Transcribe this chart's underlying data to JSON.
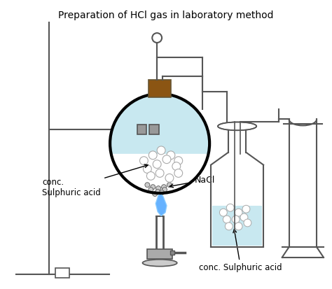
{
  "title": "Preparation of HCl gas in laboratory method",
  "title_fontsize": 10,
  "bg_color": "#ffffff",
  "line_color": "#555555",
  "liquid_color": "#c8e8f0",
  "stopper_color": "#8B5513",
  "bubble_color": "#ffffff",
  "salt_color": "#cccccc",
  "flame_color_1": "#55aaff",
  "flame_color_2": "#88ccff",
  "label_nacl": "NaCl",
  "label_acid1": "conc.\nSulphuric acid",
  "label_acid2": "conc. Sulphuric acid",
  "figsize": [
    4.74,
    4.13
  ],
  "dpi": 100
}
